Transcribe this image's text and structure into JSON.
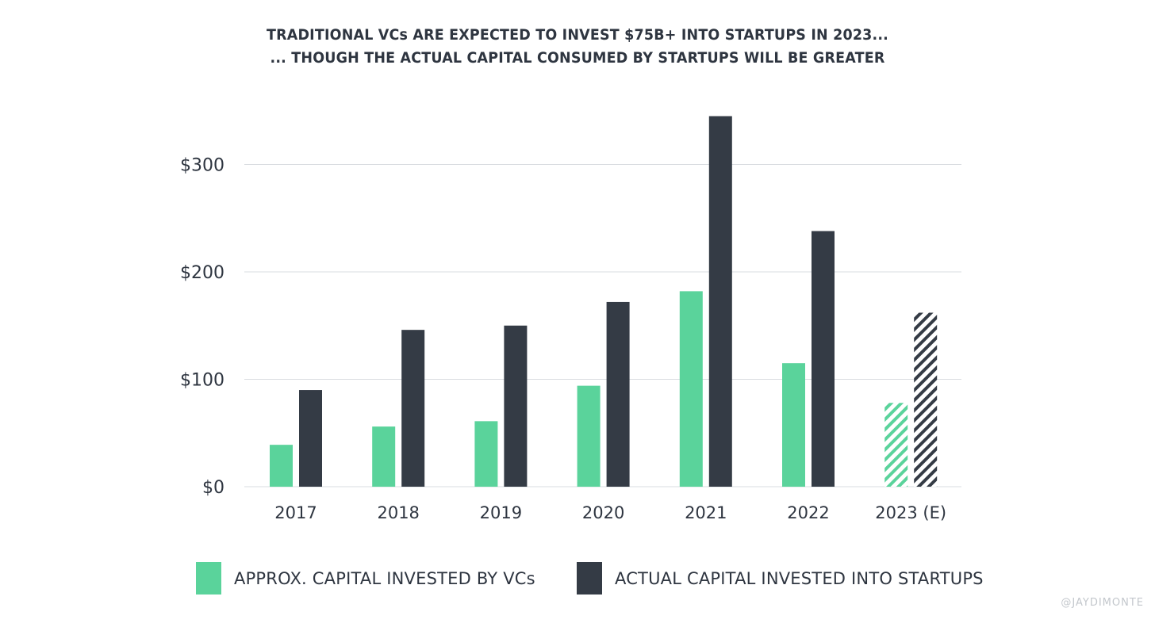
{
  "chart_data": {
    "type": "bar",
    "title_line1": "TRADITIONAL VCs ARE EXPECTED TO INVEST $75B+ INTO STARTUPS IN 2023...",
    "title_line2": "... THOUGH THE ACTUAL CAPITAL CONSUMED BY STARTUPS WILL BE GREATER",
    "categories": [
      "2017",
      "2018",
      "2019",
      "2020",
      "2021",
      "2022",
      "2023 (E)"
    ],
    "estimated_category": "2023 (E)",
    "yticks": [
      {
        "value": 0,
        "label": "$0"
      },
      {
        "value": 100,
        "label": "$100"
      },
      {
        "value": 200,
        "label": "$200"
      },
      {
        "value": 300,
        "label": "$300"
      }
    ],
    "ylim": [
      0,
      345
    ],
    "grid": true,
    "legend_position": "bottom",
    "series": [
      {
        "name": "APPROX. CAPITAL INVESTED BY VCs",
        "color": "#5ad39b",
        "values": [
          39,
          56,
          61,
          94,
          182,
          115,
          78
        ]
      },
      {
        "name": "ACTUAL CAPITAL INVESTED INTO STARTUPS",
        "color": "#343b45",
        "values": [
          90,
          146,
          150,
          172,
          345,
          238,
          162
        ]
      }
    ]
  },
  "watermark": "@JAYDIMONTE"
}
